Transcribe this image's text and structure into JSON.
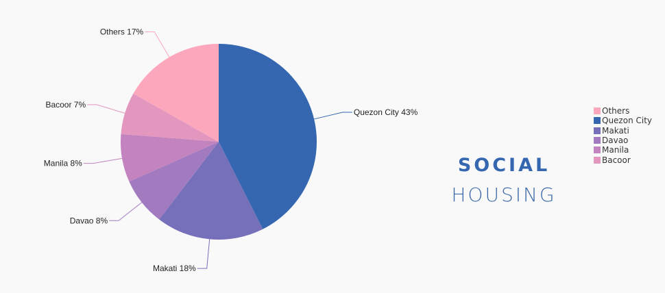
{
  "title": {
    "line1": "SOCIAL",
    "line2": "HOUSING"
  },
  "chart_data": {
    "type": "pie",
    "start": "top",
    "direction": "clockwise",
    "slices": [
      {
        "label": "Quezon City",
        "value": 43,
        "display": "Quezon City 43%",
        "color": "#3567b1"
      },
      {
        "label": "Makati",
        "value": 18,
        "display": "Makati 18%",
        "color": "#7670bb"
      },
      {
        "label": "Davao",
        "value": 8,
        "display": "Davao 8%",
        "color": "#a27ac0"
      },
      {
        "label": "Manila",
        "value": 8,
        "display": "Manila 8%",
        "color": "#c283bf"
      },
      {
        "label": "Bacoor",
        "value": 7,
        "display": "Bacoor 7%",
        "color": "#e497be"
      },
      {
        "label": "Others",
        "value": 17,
        "display": "Others 17%",
        "color": "#fda7bd"
      }
    ],
    "legend": {
      "placement": "right",
      "order": [
        "Others",
        "Quezon City",
        "Makati",
        "Davao",
        "Manila",
        "Bacoor"
      ]
    }
  }
}
